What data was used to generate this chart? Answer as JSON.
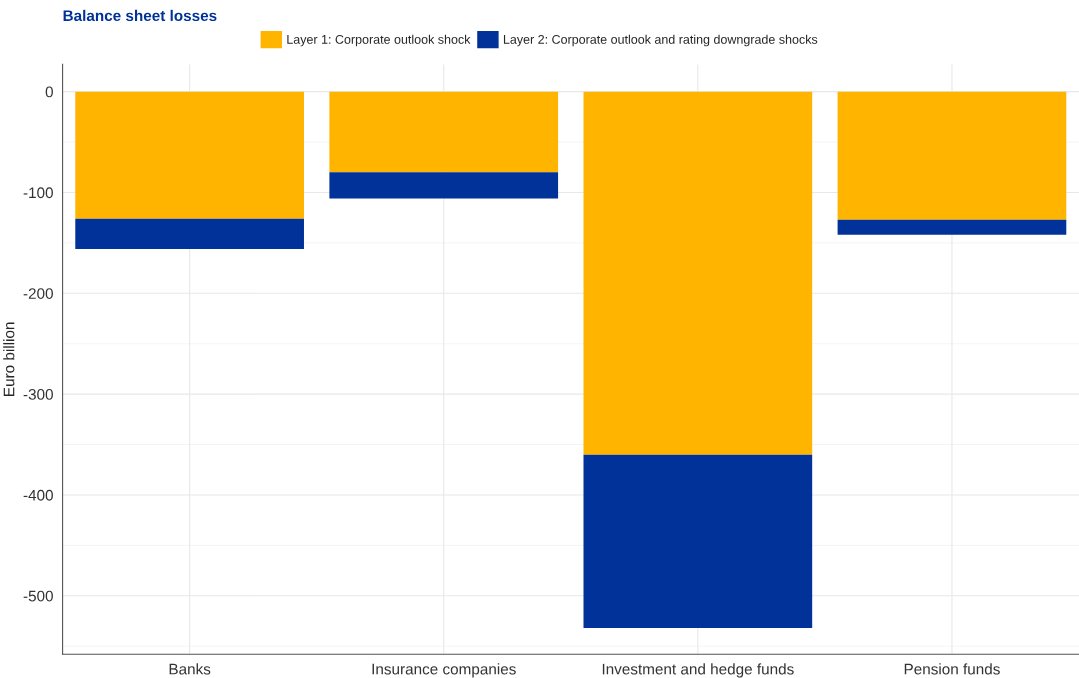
{
  "chart_data": {
    "type": "bar",
    "title": "Balance sheet losses",
    "ylabel": "Euro billion",
    "categories": [
      "Banks",
      "Insurance companies",
      "Investment and hedge funds",
      "Pension funds"
    ],
    "stacked": true,
    "series": [
      {
        "name": "Layer 1: Corporate outlook shock",
        "color": "#ffb400",
        "values": [
          -126,
          -80,
          -360,
          -127
        ]
      },
      {
        "name": "Layer 2: Corporate outlook and rating downgrade shocks",
        "color": "#003299",
        "values": [
          -30,
          -26,
          -172,
          -15
        ]
      }
    ],
    "ylim": [
      -558,
      27
    ],
    "yticks": [
      -500,
      -400,
      -300,
      -200,
      -100,
      0
    ],
    "grid": true,
    "legend": "top"
  }
}
